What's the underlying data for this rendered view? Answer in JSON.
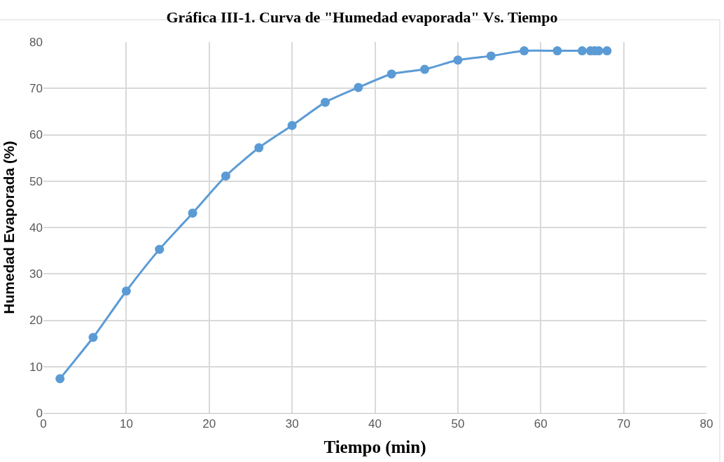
{
  "chart_data": {
    "type": "line",
    "title": "Gráfica III-1. Curva de \"Humedad evaporada\" Vs. Tiempo",
    "xlabel": "Tiempo (min)",
    "ylabel": "Humedad Evaporada (%)",
    "x": [
      2,
      6,
      10,
      14,
      18,
      22,
      26,
      30,
      34,
      38,
      42,
      46,
      50,
      54,
      58,
      62,
      65,
      66,
      66.5,
      67,
      68
    ],
    "series": [
      {
        "color": "#5b9bd5",
        "values": [
          7.4,
          16.3,
          26.3,
          35.3,
          43.1,
          51.1,
          57.2,
          62.0,
          67.0,
          70.2,
          73.1,
          74.1,
          76.1,
          77.0,
          78.1,
          78.1,
          78.1,
          78.1,
          78.1,
          78.1,
          78.1
        ]
      }
    ],
    "xlim": [
      0,
      80
    ],
    "xticks": [
      0,
      10,
      20,
      30,
      40,
      50,
      60,
      70,
      80
    ],
    "ylim": [
      0,
      80
    ],
    "yticks": [
      0,
      10,
      20,
      30,
      40,
      50,
      60,
      70,
      80
    ],
    "grid": true,
    "legend": false,
    "marker": "circle",
    "line_style": "solid"
  }
}
